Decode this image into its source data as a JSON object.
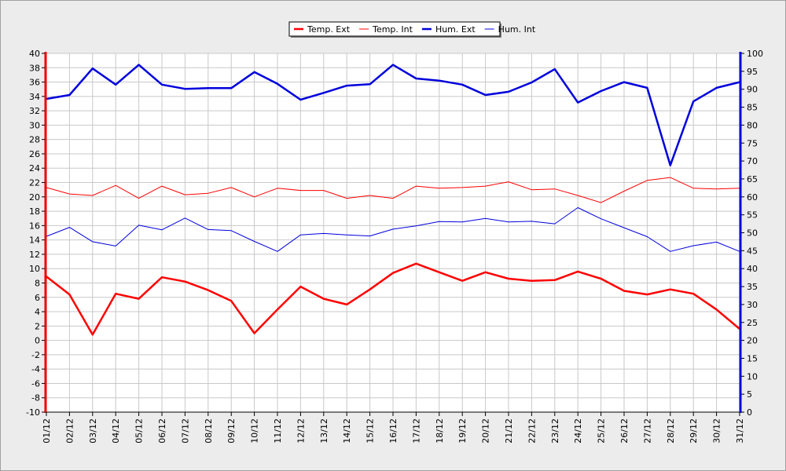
{
  "chart_data": {
    "type": "line",
    "title": "",
    "xlabel": "",
    "ylabel": "",
    "y2label": "",
    "categories": [
      "01/12",
      "02/12",
      "03/12",
      "04/12",
      "05/12",
      "06/12",
      "07/12",
      "08/12",
      "09/12",
      "10/12",
      "11/12",
      "12/12",
      "13/12",
      "14/12",
      "15/12",
      "16/12",
      "17/12",
      "18/12",
      "19/12",
      "20/12",
      "21/12",
      "22/12",
      "23/12",
      "24/12",
      "25/12",
      "26/12",
      "27/12",
      "28/12",
      "29/12",
      "30/12",
      "31/12"
    ],
    "ylim": [
      -10,
      40
    ],
    "y_ticks": [
      -10,
      -8,
      -6,
      -4,
      -2,
      0,
      2,
      4,
      6,
      8,
      10,
      12,
      14,
      16,
      18,
      20,
      22,
      24,
      26,
      28,
      30,
      32,
      34,
      36,
      38,
      40
    ],
    "y2lim": [
      0,
      100
    ],
    "y2_ticks": [
      0,
      5,
      10,
      15,
      20,
      25,
      30,
      35,
      40,
      45,
      50,
      55,
      60,
      65,
      70,
      75,
      80,
      85,
      90,
      95,
      100
    ],
    "grid": true,
    "legend_position": "top-center",
    "series": [
      {
        "name": "Temp. Ext",
        "axis": "left",
        "color": "#ff0000",
        "line_width": "thick",
        "values": [
          8.9,
          6.4,
          0.8,
          6.5,
          5.8,
          8.8,
          8.2,
          7.0,
          5.5,
          1.0,
          4.3,
          7.5,
          5.8,
          5.0,
          7.1,
          9.4,
          10.7,
          9.5,
          8.3,
          9.5,
          8.6,
          8.3,
          8.4,
          9.6,
          8.6,
          6.9,
          6.4,
          7.1,
          6.5,
          4.3,
          1.6
        ]
      },
      {
        "name": "Temp. Int",
        "axis": "left",
        "color": "#ff0000",
        "line_width": "thin",
        "values": [
          21.3,
          20.4,
          20.2,
          21.6,
          19.8,
          21.5,
          20.3,
          20.5,
          21.3,
          20.0,
          21.2,
          20.9,
          20.9,
          19.8,
          20.2,
          19.8,
          21.5,
          21.2,
          21.3,
          21.5,
          22.1,
          21.0,
          21.1,
          20.2,
          19.2,
          20.8,
          22.3,
          22.7,
          21.2,
          21.1,
          21.2
        ]
      },
      {
        "name": "Hum. Ext",
        "axis": "right",
        "color": "#0000dd",
        "line_width": "thick",
        "values": [
          87.3,
          88.4,
          95.8,
          91.3,
          96.8,
          91.3,
          90.1,
          90.3,
          90.3,
          94.8,
          91.5,
          87.1,
          89.0,
          91.0,
          91.4,
          96.8,
          93.0,
          92.4,
          91.3,
          88.4,
          89.3,
          91.9,
          95.6,
          86.3,
          89.5,
          92.0,
          90.4,
          68.8,
          86.6,
          90.4,
          92.0
        ]
      },
      {
        "name": "Hum. Int",
        "axis": "right",
        "color": "#0000dd",
        "line_width": "thin",
        "values": [
          49.0,
          51.5,
          47.5,
          46.3,
          52.1,
          50.8,
          54.1,
          50.9,
          50.6,
          47.6,
          44.8,
          49.4,
          49.8,
          49.4,
          49.1,
          51.0,
          51.9,
          53.1,
          53.0,
          54.0,
          53.0,
          53.2,
          52.5,
          57.0,
          53.9,
          51.4,
          48.9,
          44.8,
          46.4,
          47.4,
          44.8
        ]
      }
    ]
  }
}
